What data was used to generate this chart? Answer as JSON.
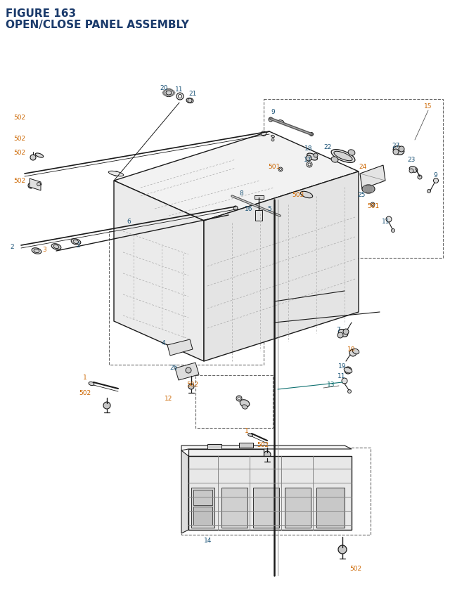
{
  "title_line1": "FIGURE 163",
  "title_line2": "OPEN/CLOSE PANEL ASSEMBLY",
  "title_color": "#1a3a6b",
  "title_fontsize": 11,
  "bg_color": "#ffffff",
  "label_orange": "#cc6600",
  "label_blue": "#1a5276",
  "label_teal": "#0e7070",
  "line_color": "#1a1a1a",
  "dash_color": "#666666",
  "part_fill": "#f5f5f5",
  "part_edge": "#333333",
  "figsize": [
    6.4,
    8.62
  ],
  "dpi": 100
}
